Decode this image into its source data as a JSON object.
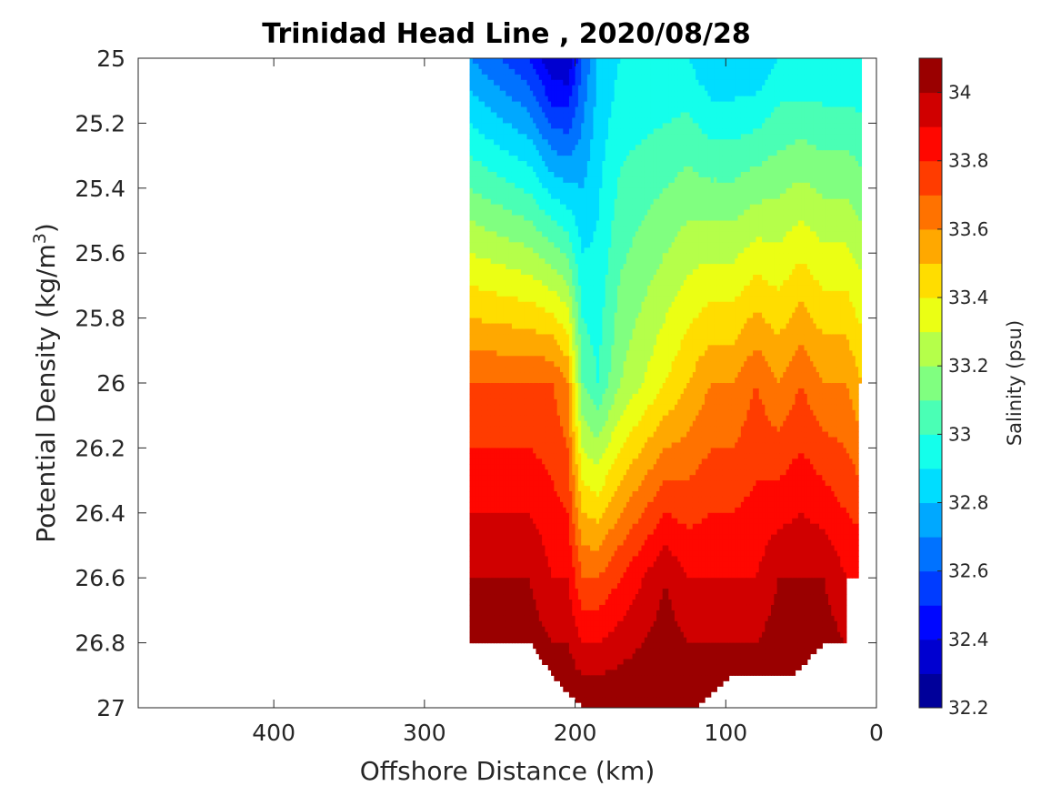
{
  "chart_data": {
    "type": "heatmap",
    "subtype": "filled-contour",
    "title": "Trinidad Head Line , 2020/08/28",
    "xlabel": "Offshore Distance (km)",
    "ylabel_main": "Potential Density (kg/m",
    "ylabel_sup": "3",
    "ylabel_close": ")",
    "xlim": [
      490,
      0
    ],
    "x_reversed": true,
    "ylim": [
      25,
      27
    ],
    "y_reversed": true,
    "x_ticks": [
      400,
      300,
      200,
      100,
      0
    ],
    "x_tick_labels": [
      "400",
      "300",
      "200",
      "100",
      "0"
    ],
    "y_ticks": [
      25,
      25.2,
      25.4,
      25.6,
      25.8,
      26,
      26.2,
      26.4,
      26.6,
      26.8,
      27
    ],
    "y_tick_labels": [
      "25",
      "25.2",
      "25.4",
      "25.6",
      "25.8",
      "26",
      "26.2",
      "26.4",
      "26.6",
      "26.8",
      "27"
    ],
    "colorbar": {
      "label": "Salinity (psu)",
      "range": [
        32.2,
        34.1
      ],
      "level_step": 0.1,
      "ticks": [
        32.2,
        32.4,
        32.6,
        32.8,
        33,
        33.2,
        33.4,
        33.6,
        33.8,
        34
      ],
      "tick_labels": [
        "32.2",
        "32.4",
        "32.6",
        "32.8",
        "33",
        "33.2",
        "33.4",
        "33.6",
        "33.8",
        "34"
      ],
      "colormap": "jet"
    },
    "station_distances_km": [
      270,
      250,
      230,
      215,
      205,
      195,
      185,
      170,
      155,
      140,
      125,
      110,
      95,
      80,
      65,
      50,
      35,
      20,
      10
    ],
    "section_profile": {
      "description_values": "salinity increases with density; fresh core (low salinity) near 200 km offshore",
      "surface_salinity_at_25": [
        32.7,
        32.6,
        32.5,
        32.3,
        32.3,
        32.6,
        32.8,
        32.9,
        32.9,
        32.9,
        32.9,
        32.8,
        32.8,
        32.8,
        32.9,
        32.9,
        32.9,
        32.9,
        32.9
      ],
      "salinity_at_26": [
        33.7,
        33.7,
        33.7,
        33.7,
        33.6,
        33.1,
        33.0,
        33.2,
        33.3,
        33.4,
        33.5,
        33.6,
        33.6,
        33.7,
        33.6,
        33.7,
        33.6,
        33.6,
        33.5
      ],
      "salinity_at_26_6": [
        34.0,
        34.0,
        34.0,
        33.9,
        33.9,
        33.7,
        33.7,
        33.8,
        33.9,
        34.0,
        33.9,
        33.9,
        33.9,
        33.9,
        34.0,
        34.0,
        34.0,
        33.9,
        33.9
      ],
      "max_salinity_near_bottom": 34.1
    }
  }
}
